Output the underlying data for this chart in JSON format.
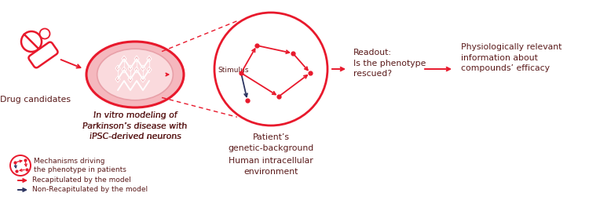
{
  "bg_color": "#ffffff",
  "text_color": "#5a1a1a",
  "red_color": "#e8192c",
  "pink_fill": "#f5b8be",
  "pink_inner": "#fadadd",
  "dark_navy": "#2d3561",
  "label_drug": "Drug candidates",
  "label_vitro": "In vitro modeling of\nParkinson’s disease with\niPSC-derived neurons",
  "label_patient": "Patient’s\ngenetic-background",
  "label_human": "Human intracellular\nenvironment",
  "label_readout": "Readout:\nIs the phenotype\nrescued?",
  "label_physio": "Physiologically relevant\ninformation about\ncompounds’ efficacy",
  "label_stimulus": "Stimulus",
  "legend_mech": "Mechanisms driving\nthe phenotype in patients",
  "legend_recap": "Recapitulated by the model",
  "legend_nonrecap": "Non-Recapitulated by the model",
  "fig_w": 7.5,
  "fig_h": 2.83,
  "dpi": 100
}
